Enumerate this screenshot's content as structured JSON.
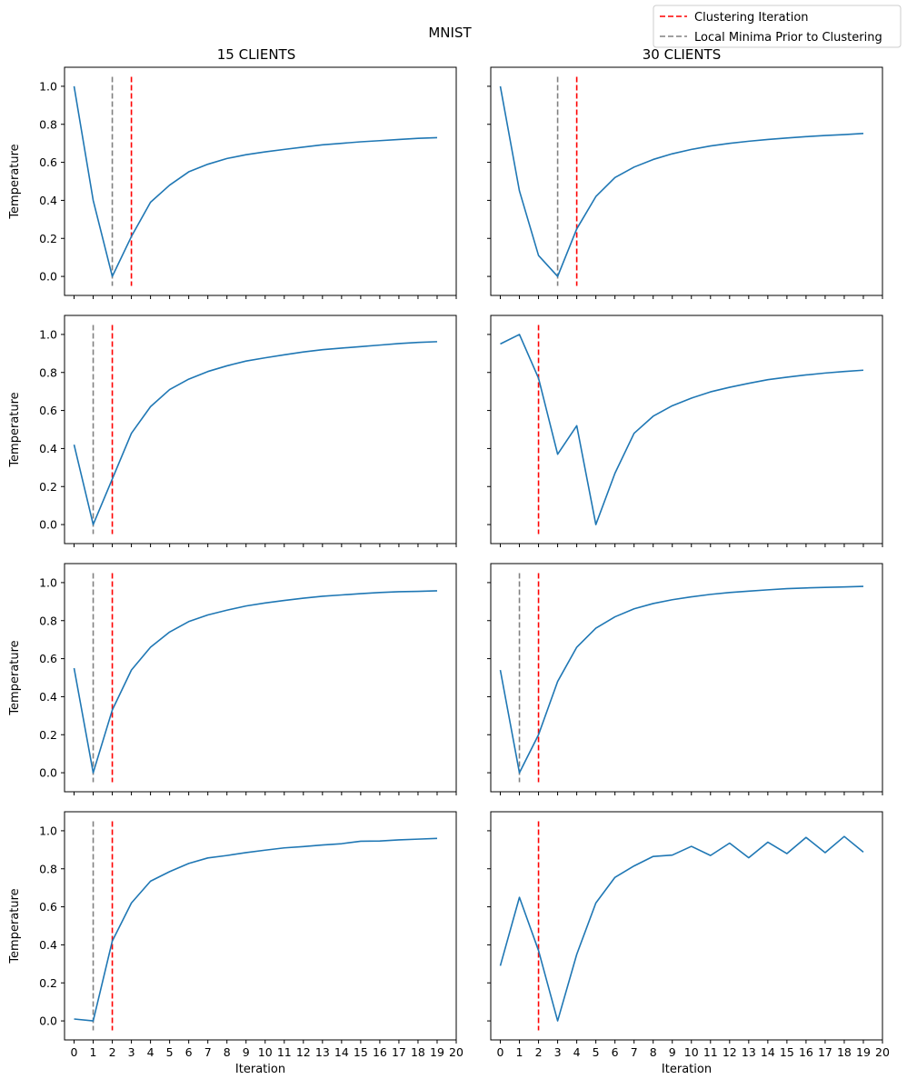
{
  "figure": {
    "suptitle": "MNIST",
    "column_titles": [
      "15 CLIENTS",
      "30 CLIENTS"
    ],
    "legend": {
      "placement": "top-right",
      "entries": [
        {
          "label": "Clustering Iteration",
          "color": "#ff0000",
          "style": "dashed"
        },
        {
          "label": "Local Minima Prior to Clustering",
          "color": "#808080",
          "style": "dashed"
        }
      ]
    },
    "line_color": "#1f77b4"
  },
  "chart_data": [
    {
      "type": "line",
      "row": 1,
      "column": "15 CLIENTS",
      "title": "15 CLIENTS",
      "xlabel": "",
      "ylabel": "Temperature",
      "xlim": [
        -0.5,
        20
      ],
      "ylim": [
        -0.1,
        1.1
      ],
      "xticks": [
        0,
        1,
        2,
        3,
        4,
        5,
        6,
        7,
        8,
        9,
        10,
        11,
        12,
        13,
        14,
        15,
        16,
        17,
        18,
        19,
        20
      ],
      "xtick_labels_shown": false,
      "yticks": [
        "0.0",
        "0.2",
        "0.4",
        "0.6",
        "0.8",
        "1.0"
      ],
      "ytick_labels_shown": true,
      "x": [
        0,
        1,
        2,
        3,
        4,
        5,
        6,
        7,
        8,
        9,
        10,
        11,
        12,
        13,
        14,
        15,
        16,
        17,
        18,
        19
      ],
      "y": [
        1.0,
        0.4,
        0.0,
        0.21,
        0.39,
        0.48,
        0.55,
        0.59,
        0.62,
        0.64,
        0.655,
        0.668,
        0.68,
        0.692,
        0.7,
        0.708,
        0.714,
        0.72,
        0.726,
        0.73
      ],
      "clustering_iteration": 3,
      "local_minimum": 2
    },
    {
      "type": "line",
      "row": 1,
      "column": "30 CLIENTS",
      "title": "30 CLIENTS",
      "xlabel": "",
      "ylabel": "",
      "xlim": [
        -0.5,
        20
      ],
      "ylim": [
        -0.1,
        1.1
      ],
      "xticks": [
        0,
        1,
        2,
        3,
        4,
        5,
        6,
        7,
        8,
        9,
        10,
        11,
        12,
        13,
        14,
        15,
        16,
        17,
        18,
        19,
        20
      ],
      "xtick_labels_shown": false,
      "yticks": [
        "0.0",
        "0.2",
        "0.4",
        "0.6",
        "0.8",
        "1.0"
      ],
      "ytick_labels_shown": false,
      "x": [
        0,
        1,
        2,
        3,
        4,
        5,
        6,
        7,
        8,
        9,
        10,
        11,
        12,
        13,
        14,
        15,
        16,
        17,
        18,
        19
      ],
      "y": [
        1.0,
        0.45,
        0.11,
        0.0,
        0.25,
        0.42,
        0.52,
        0.575,
        0.615,
        0.645,
        0.668,
        0.686,
        0.7,
        0.711,
        0.72,
        0.728,
        0.735,
        0.741,
        0.746,
        0.752
      ],
      "clustering_iteration": 4,
      "local_minimum": 3
    },
    {
      "type": "line",
      "row": 2,
      "column": "15 CLIENTS",
      "title": "",
      "xlabel": "",
      "ylabel": "Temperature",
      "xlim": [
        -0.5,
        20
      ],
      "ylim": [
        -0.1,
        1.1
      ],
      "xticks": [
        0,
        1,
        2,
        3,
        4,
        5,
        6,
        7,
        8,
        9,
        10,
        11,
        12,
        13,
        14,
        15,
        16,
        17,
        18,
        19,
        20
      ],
      "xtick_labels_shown": false,
      "yticks": [
        "0.0",
        "0.2",
        "0.4",
        "0.6",
        "0.8",
        "1.0"
      ],
      "ytick_labels_shown": true,
      "x": [
        0,
        1,
        2,
        3,
        4,
        5,
        6,
        7,
        8,
        9,
        10,
        11,
        12,
        13,
        14,
        15,
        16,
        17,
        18,
        19
      ],
      "y": [
        0.42,
        0.0,
        0.24,
        0.48,
        0.62,
        0.71,
        0.765,
        0.805,
        0.835,
        0.86,
        0.877,
        0.893,
        0.908,
        0.92,
        0.928,
        0.936,
        0.944,
        0.952,
        0.958,
        0.962
      ],
      "clustering_iteration": 2,
      "local_minimum": 1
    },
    {
      "type": "line",
      "row": 2,
      "column": "30 CLIENTS",
      "title": "",
      "xlabel": "",
      "ylabel": "",
      "xlim": [
        -0.5,
        20
      ],
      "ylim": [
        -0.1,
        1.1
      ],
      "xticks": [
        0,
        1,
        2,
        3,
        4,
        5,
        6,
        7,
        8,
        9,
        10,
        11,
        12,
        13,
        14,
        15,
        16,
        17,
        18,
        19,
        20
      ],
      "xtick_labels_shown": false,
      "yticks": [
        "0.0",
        "0.2",
        "0.4",
        "0.6",
        "0.8",
        "1.0"
      ],
      "ytick_labels_shown": false,
      "x": [
        0,
        1,
        2,
        3,
        4,
        5,
        6,
        7,
        8,
        9,
        10,
        11,
        12,
        13,
        14,
        15,
        16,
        17,
        18,
        19
      ],
      "y": [
        0.95,
        1.0,
        0.77,
        0.37,
        0.52,
        0.0,
        0.27,
        0.48,
        0.57,
        0.625,
        0.665,
        0.698,
        0.722,
        0.743,
        0.762,
        0.775,
        0.787,
        0.797,
        0.805,
        0.812
      ],
      "clustering_iteration": 2,
      "local_minimum": null
    },
    {
      "type": "line",
      "row": 3,
      "column": "15 CLIENTS",
      "title": "",
      "xlabel": "",
      "ylabel": "Temperature",
      "xlim": [
        -0.5,
        20
      ],
      "ylim": [
        -0.1,
        1.1
      ],
      "xticks": [
        0,
        1,
        2,
        3,
        4,
        5,
        6,
        7,
        8,
        9,
        10,
        11,
        12,
        13,
        14,
        15,
        16,
        17,
        18,
        19,
        20
      ],
      "xtick_labels_shown": false,
      "yticks": [
        "0.0",
        "0.2",
        "0.4",
        "0.6",
        "0.8",
        "1.0"
      ],
      "ytick_labels_shown": true,
      "x": [
        0,
        1,
        2,
        3,
        4,
        5,
        6,
        7,
        8,
        9,
        10,
        11,
        12,
        13,
        14,
        15,
        16,
        17,
        18,
        19
      ],
      "y": [
        0.55,
        0.0,
        0.33,
        0.54,
        0.66,
        0.74,
        0.795,
        0.83,
        0.855,
        0.877,
        0.893,
        0.906,
        0.918,
        0.928,
        0.935,
        0.942,
        0.948,
        0.952,
        0.954,
        0.957
      ],
      "clustering_iteration": 2,
      "local_minimum": 1
    },
    {
      "type": "line",
      "row": 3,
      "column": "30 CLIENTS",
      "title": "",
      "xlabel": "",
      "ylabel": "",
      "xlim": [
        -0.5,
        20
      ],
      "ylim": [
        -0.1,
        1.1
      ],
      "xticks": [
        0,
        1,
        2,
        3,
        4,
        5,
        6,
        7,
        8,
        9,
        10,
        11,
        12,
        13,
        14,
        15,
        16,
        17,
        18,
        19,
        20
      ],
      "xtick_labels_shown": false,
      "yticks": [
        "0.0",
        "0.2",
        "0.4",
        "0.6",
        "0.8",
        "1.0"
      ],
      "ytick_labels_shown": false,
      "x": [
        0,
        1,
        2,
        3,
        4,
        5,
        6,
        7,
        8,
        9,
        10,
        11,
        12,
        13,
        14,
        15,
        16,
        17,
        18,
        19
      ],
      "y": [
        0.54,
        0.0,
        0.2,
        0.48,
        0.66,
        0.76,
        0.82,
        0.862,
        0.89,
        0.91,
        0.925,
        0.938,
        0.948,
        0.955,
        0.962,
        0.968,
        0.972,
        0.975,
        0.977,
        0.98
      ],
      "clustering_iteration": 2,
      "local_minimum": 1
    },
    {
      "type": "line",
      "row": 4,
      "column": "15 CLIENTS",
      "title": "",
      "xlabel": "Iteration",
      "ylabel": "Temperature",
      "xlim": [
        -0.5,
        20
      ],
      "ylim": [
        -0.1,
        1.1
      ],
      "xticks": [
        0,
        1,
        2,
        3,
        4,
        5,
        6,
        7,
        8,
        9,
        10,
        11,
        12,
        13,
        14,
        15,
        16,
        17,
        18,
        19,
        20
      ],
      "xtick_labels_shown": true,
      "yticks": [
        "0.0",
        "0.2",
        "0.4",
        "0.6",
        "0.8",
        "1.0"
      ],
      "ytick_labels_shown": true,
      "x": [
        0,
        1,
        2,
        3,
        4,
        5,
        6,
        7,
        8,
        9,
        10,
        11,
        12,
        13,
        14,
        15,
        16,
        17,
        18,
        19
      ],
      "y": [
        0.01,
        0.0,
        0.42,
        0.62,
        0.735,
        0.785,
        0.828,
        0.857,
        0.87,
        0.885,
        0.898,
        0.91,
        0.917,
        0.925,
        0.932,
        0.945,
        0.946,
        0.952,
        0.956,
        0.96
      ],
      "clustering_iteration": 2,
      "local_minimum": 1
    },
    {
      "type": "line",
      "row": 4,
      "column": "30 CLIENTS",
      "title": "",
      "xlabel": "Iteration",
      "ylabel": "",
      "xlim": [
        -0.5,
        20
      ],
      "ylim": [
        -0.1,
        1.1
      ],
      "xticks": [
        0,
        1,
        2,
        3,
        4,
        5,
        6,
        7,
        8,
        9,
        10,
        11,
        12,
        13,
        14,
        15,
        16,
        17,
        18,
        19,
        20
      ],
      "xtick_labels_shown": true,
      "yticks": [
        "0.0",
        "0.2",
        "0.4",
        "0.6",
        "0.8",
        "1.0"
      ],
      "ytick_labels_shown": false,
      "x": [
        0,
        1,
        2,
        3,
        4,
        5,
        6,
        7,
        8,
        9,
        10,
        11,
        12,
        13,
        14,
        15,
        16,
        17,
        18,
        19
      ],
      "y": [
        0.29,
        0.65,
        0.37,
        0.0,
        0.35,
        0.62,
        0.755,
        0.815,
        0.865,
        0.872,
        0.918,
        0.87,
        0.935,
        0.858,
        0.94,
        0.88,
        0.965,
        0.885,
        0.97,
        0.888
      ],
      "clustering_iteration": 2,
      "local_minimum": null
    }
  ]
}
